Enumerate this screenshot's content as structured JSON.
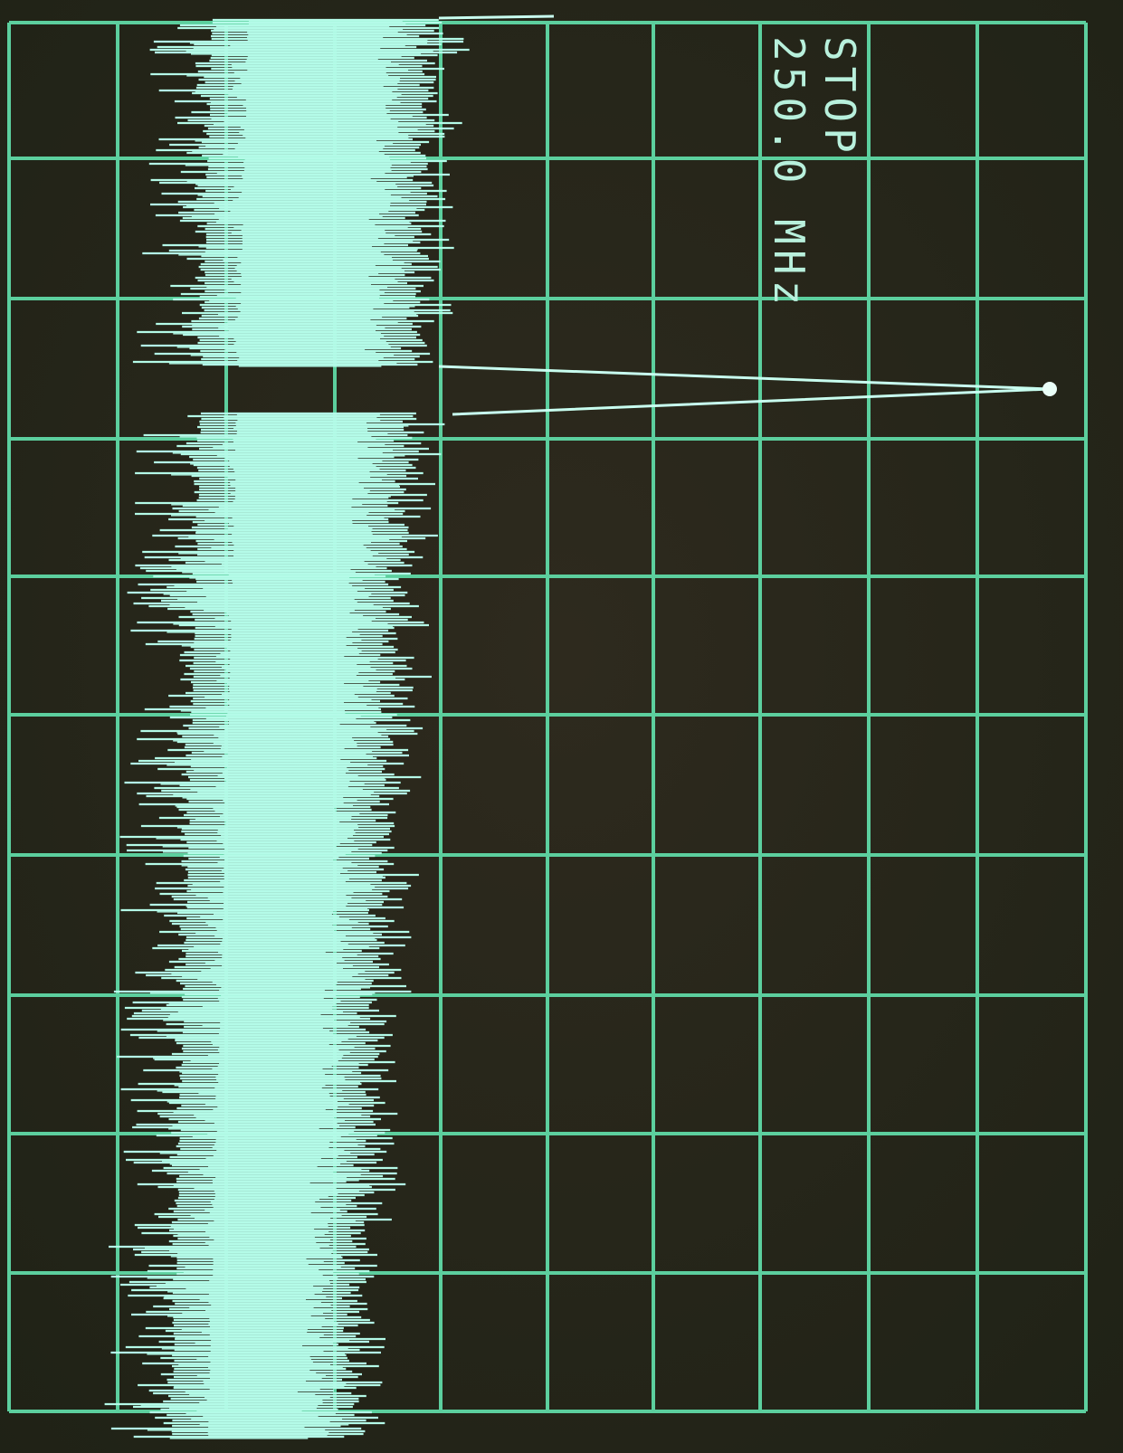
{
  "screen": {
    "label": "STOP",
    "frequency": "250.0 MHz"
  }
}
